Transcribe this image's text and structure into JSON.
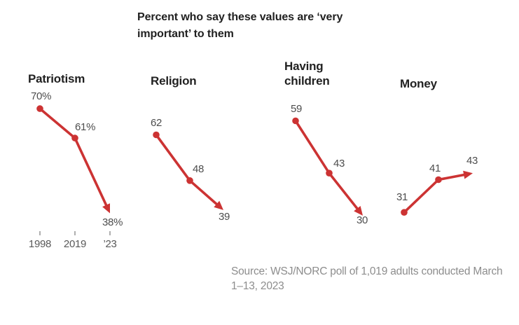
{
  "chart_data": {
    "type": "line",
    "title": "Percent who say these values are ‘very important’ to them",
    "x_tick_labels": [
      "1998",
      "2019",
      "’23"
    ],
    "years": [
      1998,
      2019,
      2023
    ],
    "accent_color": "#cc3333",
    "grid": false,
    "legend": "none",
    "ylim": [
      25,
      75
    ],
    "panels": [
      {
        "title": "Patriotism",
        "values": [
          70,
          61,
          38
        ],
        "labels": [
          "70%",
          "61%",
          "38%"
        ]
      },
      {
        "title": "Religion",
        "values": [
          62,
          48,
          39
        ],
        "labels": [
          "62",
          "48",
          "39"
        ]
      },
      {
        "title": "Having children",
        "values": [
          59,
          43,
          30
        ],
        "labels": [
          "59",
          "43",
          "30"
        ]
      },
      {
        "title": "Money",
        "values": [
          31,
          41,
          43
        ],
        "labels": [
          "31",
          "41",
          "43"
        ]
      }
    ],
    "source": "Source: WSJ/NORC poll of 1,019 adults conducted March 1–13, 2023"
  }
}
